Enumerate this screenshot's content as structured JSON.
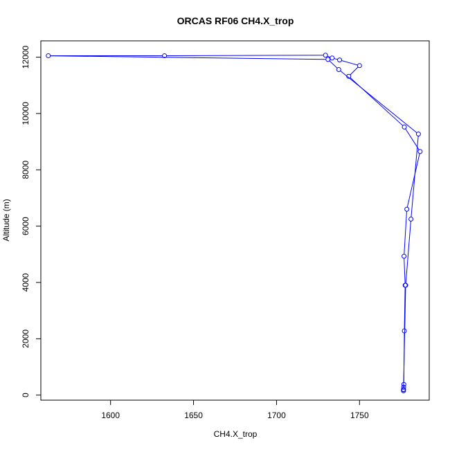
{
  "chart_data": {
    "type": "line",
    "title": "ORCAS RF06 CH4.X_trop",
    "xlabel": "CH4.X_trop",
    "ylabel": "Altitude (m)",
    "xlim": [
      1558,
      1792
    ],
    "ylim": [
      -180,
      12580
    ],
    "xticks": [
      1600,
      1650,
      1700,
      1750
    ],
    "yticks": [
      0,
      2000,
      4000,
      6000,
      8000,
      10000,
      12000
    ],
    "grid": false,
    "line_color": "#0000ff",
    "series": [
      {
        "points": [
          {
            "x": 1776.5,
            "y": 150
          },
          {
            "x": 1776.5,
            "y": 190
          },
          {
            "x": 1776.6,
            "y": 280
          },
          {
            "x": 1776.7,
            "y": 380
          },
          {
            "x": 1777.0,
            "y": 2280
          },
          {
            "x": 1777.5,
            "y": 3900
          },
          {
            "x": 1776.8,
            "y": 4930
          },
          {
            "x": 1778.5,
            "y": 6600
          },
          {
            "x": 1786.5,
            "y": 8650
          },
          {
            "x": 1777.0,
            "y": 9520
          },
          {
            "x": 1743.5,
            "y": 11320
          },
          {
            "x": 1750.0,
            "y": 11700
          },
          {
            "x": 1738.0,
            "y": 11900
          },
          {
            "x": 1733.5,
            "y": 11970
          },
          {
            "x": 1729.5,
            "y": 12070
          },
          {
            "x": 1632.5,
            "y": 12050
          },
          {
            "x": 1562.5,
            "y": 12050
          },
          {
            "x": 1731.0,
            "y": 11920
          },
          {
            "x": 1737.5,
            "y": 11560
          },
          {
            "x": 1785.5,
            "y": 9270
          },
          {
            "x": 1781.0,
            "y": 6250
          },
          {
            "x": 1777.8,
            "y": 3900
          },
          {
            "x": 1776.5,
            "y": 200
          }
        ]
      }
    ]
  }
}
